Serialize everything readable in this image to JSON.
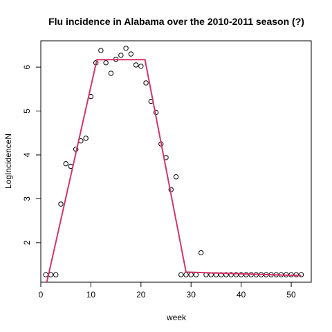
{
  "chart_data": {
    "type": "scatter",
    "title": "Flu incidence in Alabama over the 2010-2011 season (?)",
    "xlabel": "week",
    "ylabel": "LogIncidenceN",
    "xlim": [
      0,
      54
    ],
    "ylim": [
      1.1,
      6.6
    ],
    "x_ticks": [
      0,
      10,
      20,
      30,
      40,
      50
    ],
    "y_ticks": [
      2,
      3,
      4,
      5,
      6
    ],
    "grid": false,
    "series": [
      {
        "kind": "points",
        "x": [
          1,
          2,
          3,
          4,
          5,
          6,
          7,
          8,
          9,
          10,
          11,
          12,
          13,
          14,
          15,
          16,
          17,
          18,
          19,
          20,
          21,
          22,
          23,
          24,
          25,
          26,
          27,
          28,
          29,
          30,
          31,
          32,
          33,
          34,
          35,
          36,
          37,
          38,
          39,
          40,
          41,
          42,
          43,
          44,
          45,
          46,
          47,
          48,
          49,
          50,
          51,
          52
        ],
        "y": [
          1.27,
          1.27,
          1.27,
          2.88,
          3.8,
          3.74,
          4.13,
          4.32,
          4.38,
          5.33,
          6.1,
          6.38,
          6.1,
          5.86,
          6.18,
          6.27,
          6.43,
          6.3,
          6.05,
          6.02,
          5.64,
          5.22,
          4.97,
          4.25,
          3.94,
          3.21,
          3.5,
          1.27,
          1.27,
          1.27,
          1.27,
          1.77,
          1.27,
          1.27,
          1.27,
          1.27,
          1.27,
          1.27,
          1.27,
          1.27,
          1.27,
          1.27,
          1.27,
          1.27,
          1.27,
          1.27,
          1.27,
          1.27,
          1.27,
          1.27,
          1.27,
          1.27
        ]
      },
      {
        "kind": "line",
        "color": "#d6336c",
        "x": [
          1.2,
          11.2,
          20.8,
          29.0,
          52.0
        ],
        "y": [
          1.1,
          6.17,
          6.17,
          1.33,
          1.25
        ]
      }
    ]
  }
}
